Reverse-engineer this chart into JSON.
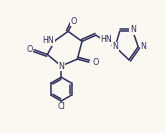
{
  "background_color": "#faf8f0",
  "line_color": "#2e2e5e",
  "line_width": 1.1,
  "text_color": "#2e2e5e",
  "font_size": 5.8,
  "xlim": [
    0,
    1.66
  ],
  "ylim": [
    0,
    1.33
  ]
}
